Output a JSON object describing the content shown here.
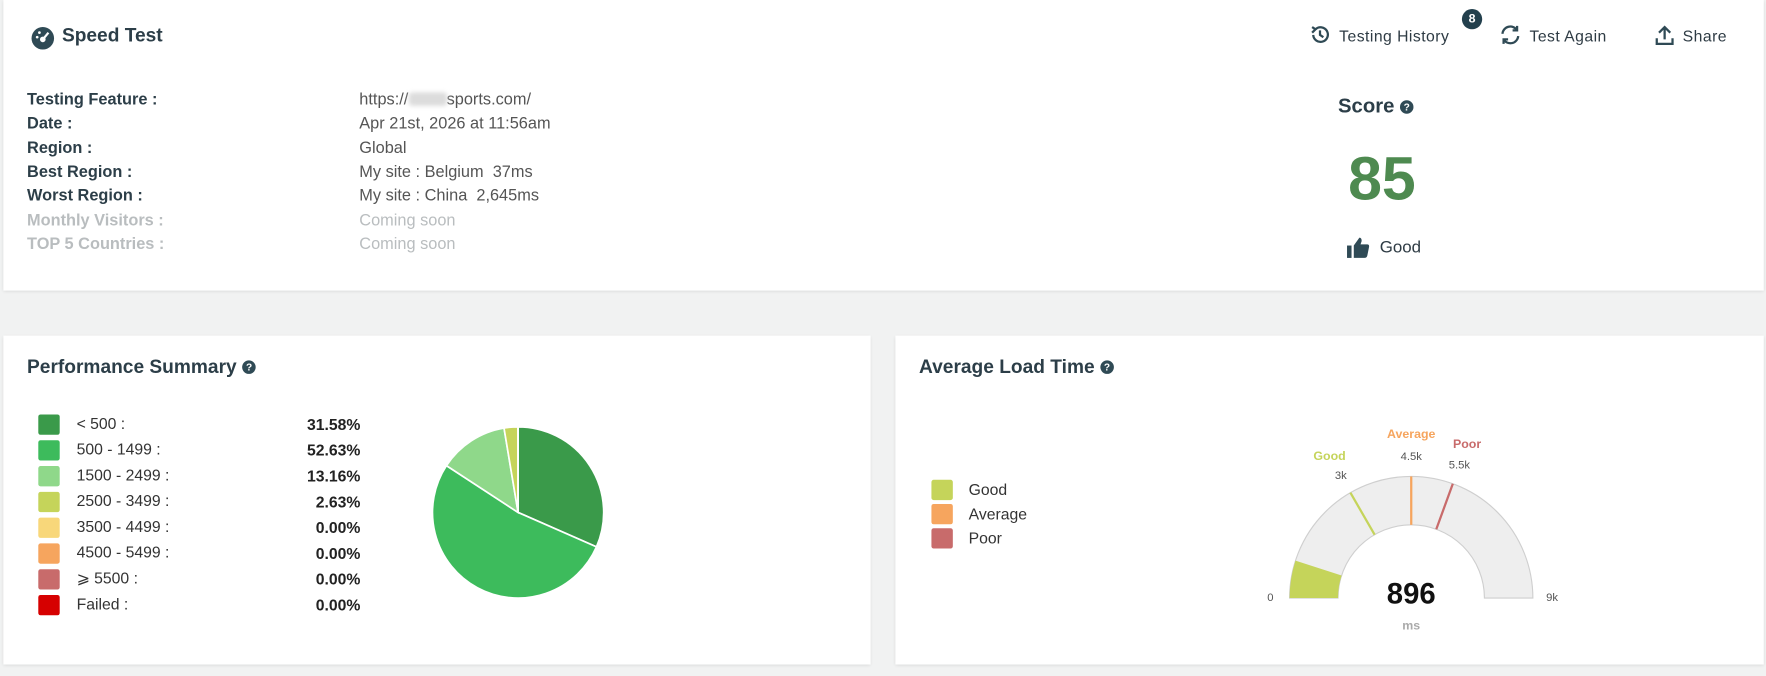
{
  "header": {
    "title": "Speed Test",
    "actions": [
      {
        "label": "Testing History",
        "badge": 8
      },
      {
        "label": "Test Again"
      },
      {
        "label": "Share"
      }
    ]
  },
  "details": {
    "rows": [
      {
        "label": "Testing Feature :",
        "value": "https://",
        "value_end": "sports.com/"
      },
      {
        "label": "Date :",
        "value": "Apr 21st, 2026 at 11:56am"
      },
      {
        "label": "Region :",
        "value": "Global"
      },
      {
        "label": "Best Region :",
        "value": "My site : Belgium  37ms"
      },
      {
        "label": "Worst Region :",
        "value": "My site : China  2,645ms"
      },
      {
        "label": "Monthly Visitors :",
        "value": "Coming soon"
      },
      {
        "label": "TOP 5 Countries :",
        "value": "Coming soon"
      }
    ]
  },
  "score": {
    "label": "Score",
    "value": 85,
    "rating": "Good"
  },
  "performance_summary": {
    "title": "Performance Summary",
    "chart_data": {
      "type": "pie",
      "categories": [
        "< 500 :",
        "500 - 1499 :",
        "1500 - 2499 :",
        "2500 - 3499 :",
        "3500 - 4499 :",
        "4500 - 5499 :",
        "⩾ 5500 :",
        "Failed :"
      ],
      "values": [
        31.58,
        52.63,
        13.16,
        2.63,
        0,
        0,
        0,
        0
      ],
      "value_labels": [
        "31.58%",
        "52.63%",
        "13.16%",
        "2.63%",
        "0.00%",
        "0.00%",
        "0.00%",
        "0.00%"
      ],
      "colors": [
        "#3a9a4a",
        "#3dbb5c",
        "#8fd88a",
        "#c5d45a",
        "#f8d77a",
        "#f6a55e",
        "#c86b6b",
        "#d60000"
      ]
    }
  },
  "average_load_time": {
    "title": "Average Load Time",
    "chart_data": {
      "type": "gauge",
      "value": 896,
      "unit": "ms",
      "color": "#c5d45a",
      "ylim": [
        0,
        9000
      ],
      "yticks": [
        0,
        {
          "value": 3000,
          "label": "3k"
        },
        {
          "value": 4500,
          "label": "4.5k"
        },
        {
          "value": 5500,
          "label": "5.5k"
        },
        {
          "value": 9000,
          "label": "9k"
        }
      ],
      "bands": [
        {
          "name": "Good",
          "value": 3000,
          "color": "#c5d45a"
        },
        {
          "name": "Average",
          "value": 4500,
          "color": "#f6a55e"
        },
        {
          "name": "Poor",
          "value": 5500,
          "color": "#c86b6b"
        }
      ]
    }
  }
}
